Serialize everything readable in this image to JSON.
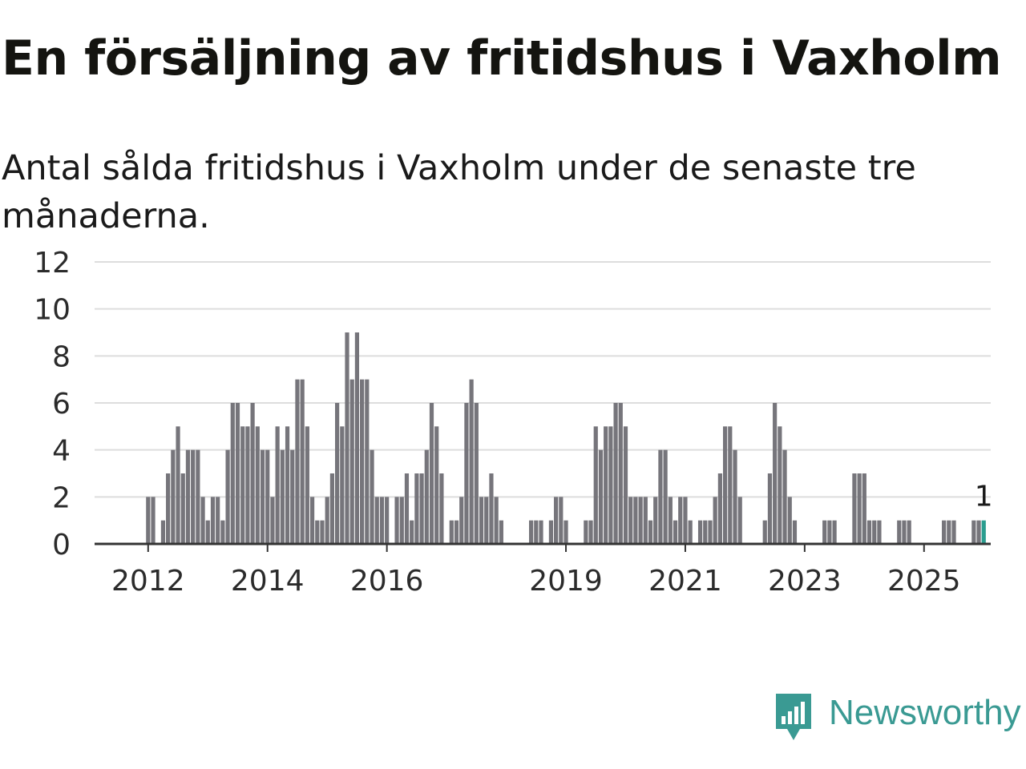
{
  "title": "En försäljning av fritidshus i Vaxholm",
  "subtitle": "Antal sålda fritidshus i Vaxholm under de senaste tre månaderna.",
  "logo": {
    "text": "Newsworthy",
    "icon": "bar-chart-speech-bubble-icon",
    "color": "#3a9a93"
  },
  "colors": {
    "bar": "#76757b",
    "highlight": "#2a9d8f",
    "grid": "#dddddd",
    "axis": "#333333"
  },
  "chart_data": {
    "type": "bar",
    "title": "En försäljning av fritidshus i Vaxholm",
    "subtitle": "Antal sålda fritidshus i Vaxholm under de senaste tre månaderna.",
    "xlabel": "",
    "ylabel": "",
    "ylim": [
      0,
      12
    ],
    "yticks": [
      0,
      2,
      4,
      6,
      8,
      10,
      12
    ],
    "xtick_labels": [
      "2012",
      "2014",
      "2016",
      "2019",
      "2021",
      "2023",
      "2025"
    ],
    "grid": true,
    "legend": "none",
    "x_start": "2011-11",
    "x_interval": "month",
    "last_value_label": "1",
    "values": [
      0,
      0,
      2,
      2,
      0,
      1,
      3,
      4,
      5,
      3,
      4,
      4,
      4,
      2,
      1,
      2,
      2,
      1,
      4,
      6,
      6,
      5,
      5,
      6,
      5,
      4,
      4,
      2,
      5,
      4,
      5,
      4,
      7,
      7,
      5,
      2,
      1,
      1,
      2,
      3,
      6,
      5,
      9,
      7,
      9,
      7,
      7,
      4,
      2,
      2,
      2,
      0,
      2,
      2,
      3,
      1,
      3,
      3,
      4,
      6,
      5,
      3,
      0,
      1,
      1,
      2,
      6,
      7,
      6,
      2,
      2,
      3,
      2,
      1,
      0,
      0,
      0,
      0,
      0,
      1,
      1,
      1,
      0,
      1,
      2,
      2,
      1,
      0,
      0,
      0,
      1,
      1,
      5,
      4,
      5,
      5,
      6,
      6,
      5,
      2,
      2,
      2,
      2,
      1,
      2,
      4,
      4,
      2,
      1,
      2,
      2,
      1,
      0,
      1,
      1,
      1,
      2,
      3,
      5,
      5,
      4,
      2,
      0,
      0,
      0,
      0,
      1,
      3,
      6,
      5,
      4,
      2,
      1,
      0,
      0,
      0,
      0,
      0,
      1,
      1,
      1,
      0,
      0,
      0,
      3,
      3,
      3,
      1,
      1,
      1,
      0,
      0,
      0,
      1,
      1,
      1,
      0,
      0,
      0,
      0,
      0,
      0,
      1,
      1,
      1,
      0,
      0,
      0,
      1,
      1,
      1
    ]
  }
}
